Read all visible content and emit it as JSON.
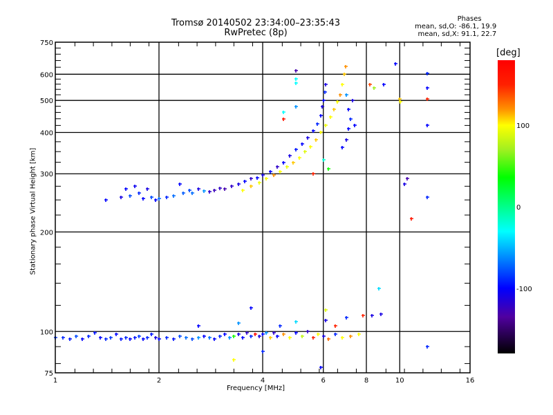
{
  "chart_data": {
    "type": "scatter",
    "title": "Tromsø 20140502 23:34:00–23:35:43",
    "subtitle": "RwPretec (8p)",
    "xlabel": "Frequency [MHz]",
    "ylabel": "Stationary phase Virtual Height [km]",
    "xscale": "log2",
    "yscale": "log",
    "xlim": [
      1,
      16
    ],
    "ylim": [
      75,
      750
    ],
    "xticks": [
      "1",
      "2",
      "4",
      "6",
      "8",
      "10",
      "16"
    ],
    "xtick_values": [
      1,
      2,
      4,
      6,
      8,
      10,
      16
    ],
    "yticks": [
      "75",
      "100",
      "200",
      "300",
      "400",
      "500",
      "600",
      "750"
    ],
    "ytick_values": [
      75,
      100,
      200,
      300,
      400,
      500,
      600,
      750
    ],
    "xgrid": [
      2,
      4,
      6,
      8,
      10
    ],
    "ygrid": [
      100,
      200,
      300,
      400,
      500,
      600
    ],
    "stats": {
      "header": "Phases",
      "line_o": "mean, sd,O: -86.1, 19.9",
      "line_x": "mean, sd,X:  91.1, 22.7"
    },
    "colorbar": {
      "label": "[deg]",
      "range": [
        -180,
        180
      ],
      "ticks": [
        "100",
        "0",
        "-100"
      ],
      "tick_values": [
        100,
        0,
        -100
      ],
      "stops": [
        {
          "v": 180,
          "c": "#ff0000"
        },
        {
          "v": 150,
          "c": "#ff2000"
        },
        {
          "v": 120,
          "c": "#ff9000"
        },
        {
          "v": 100,
          "c": "#ffff00"
        },
        {
          "v": 70,
          "c": "#a0f020"
        },
        {
          "v": 36,
          "c": "#00ff00"
        },
        {
          "v": -30,
          "c": "#00ffff"
        },
        {
          "v": -100,
          "c": "#0000ff"
        },
        {
          "v": -135,
          "c": "#5000a0"
        },
        {
          "v": -180,
          "c": "#000000"
        }
      ]
    },
    "points_legend": "each point: [frequency MHz, virtual height km, phase deg]",
    "points": [
      [
        1.0,
        96,
        -85
      ],
      [
        1.05,
        96,
        -90
      ],
      [
        1.1,
        95,
        -95
      ],
      [
        1.15,
        97,
        -80
      ],
      [
        1.2,
        95,
        -100
      ],
      [
        1.25,
        97,
        -90
      ],
      [
        1.3,
        99,
        -95
      ],
      [
        1.35,
        96,
        -100
      ],
      [
        1.4,
        95,
        -90
      ],
      [
        1.45,
        96,
        -85
      ],
      [
        1.5,
        98,
        -100
      ],
      [
        1.55,
        95,
        -95
      ],
      [
        1.6,
        96,
        -90
      ],
      [
        1.65,
        95,
        -100
      ],
      [
        1.7,
        96,
        -95
      ],
      [
        1.75,
        97,
        -85
      ],
      [
        1.8,
        95,
        -100
      ],
      [
        1.85,
        96,
        -90
      ],
      [
        1.9,
        98,
        -95
      ],
      [
        1.95,
        96,
        -110
      ],
      [
        2.0,
        95,
        -100
      ],
      [
        2.1,
        96,
        -90
      ],
      [
        2.2,
        95,
        -95
      ],
      [
        2.3,
        97,
        -80
      ],
      [
        2.4,
        96,
        -70
      ],
      [
        2.5,
        95,
        -80
      ],
      [
        2.6,
        96,
        -60
      ],
      [
        2.7,
        97,
        -100
      ],
      [
        2.8,
        96,
        -70
      ],
      [
        2.9,
        95,
        -100
      ],
      [
        3.0,
        97,
        -90
      ],
      [
        3.1,
        98,
        -100
      ],
      [
        3.2,
        96,
        -60
      ],
      [
        3.3,
        97,
        40
      ],
      [
        3.4,
        98,
        -110
      ],
      [
        3.5,
        96,
        -100
      ],
      [
        3.6,
        99,
        -120
      ],
      [
        3.7,
        97,
        -90
      ],
      [
        3.8,
        98,
        170
      ],
      [
        3.9,
        97,
        -110
      ],
      [
        4.0,
        98,
        -100
      ],
      [
        4.1,
        99,
        -60
      ],
      [
        4.2,
        96,
        110
      ],
      [
        4.3,
        99,
        -120
      ],
      [
        4.4,
        97,
        -100
      ],
      [
        4.6,
        98,
        120
      ],
      [
        4.8,
        96,
        100
      ],
      [
        5.0,
        99,
        -100
      ],
      [
        5.2,
        97,
        80
      ],
      [
        5.4,
        100,
        -120
      ],
      [
        5.6,
        96,
        150
      ],
      [
        5.8,
        98,
        100
      ],
      [
        6.0,
        97,
        -110
      ],
      [
        6.2,
        95,
        130
      ],
      [
        6.5,
        98,
        -90
      ],
      [
        6.8,
        96,
        100
      ],
      [
        7.2,
        97,
        120
      ],
      [
        7.6,
        98,
        100
      ],
      [
        2.6,
        104,
        -100
      ],
      [
        3.4,
        106,
        -60
      ],
      [
        4.5,
        104,
        -90
      ],
      [
        5.0,
        107,
        -40
      ],
      [
        6.1,
        108,
        -110
      ],
      [
        6.5,
        104,
        150
      ],
      [
        7.0,
        110,
        -90
      ],
      [
        7.8,
        112,
        150
      ],
      [
        8.3,
        112,
        -110
      ],
      [
        8.8,
        113,
        -110
      ],
      [
        3.7,
        118,
        -100
      ],
      [
        6.1,
        116,
        90
      ],
      [
        1.4,
        250,
        -100
      ],
      [
        1.55,
        255,
        -110
      ],
      [
        1.6,
        270,
        -100
      ],
      [
        1.65,
        258,
        -80
      ],
      [
        1.7,
        275,
        -105
      ],
      [
        1.75,
        262,
        -90
      ],
      [
        1.8,
        252,
        -100
      ],
      [
        1.85,
        270,
        -110
      ],
      [
        1.9,
        255,
        -80
      ],
      [
        1.95,
        250,
        -100
      ],
      [
        2.0,
        252,
        -70
      ],
      [
        2.1,
        255,
        -90
      ],
      [
        2.2,
        258,
        -70
      ],
      [
        2.3,
        280,
        -100
      ],
      [
        2.35,
        262,
        -75
      ],
      [
        2.45,
        268,
        -80
      ],
      [
        2.5,
        262,
        -70
      ],
      [
        2.6,
        270,
        -110
      ],
      [
        2.7,
        266,
        -60
      ],
      [
        2.8,
        265,
        -120
      ],
      [
        2.9,
        268,
        -125
      ],
      [
        3.0,
        272,
        -120
      ],
      [
        3.1,
        270,
        -130
      ],
      [
        3.25,
        275,
        -120
      ],
      [
        3.4,
        280,
        -110
      ],
      [
        3.55,
        285,
        -100
      ],
      [
        3.7,
        290,
        -120
      ],
      [
        3.85,
        292,
        -100
      ],
      [
        4.0,
        298,
        -110
      ],
      [
        4.2,
        305,
        -100
      ],
      [
        4.4,
        315,
        -120
      ],
      [
        4.6,
        325,
        -100
      ],
      [
        4.8,
        340,
        -110
      ],
      [
        5.0,
        355,
        -95
      ],
      [
        5.2,
        370,
        -100
      ],
      [
        5.4,
        385,
        -110
      ],
      [
        5.6,
        405,
        -100
      ],
      [
        5.75,
        425,
        -90
      ],
      [
        5.9,
        450,
        -100
      ],
      [
        5.95,
        480,
        -110
      ],
      [
        6.0,
        500,
        -100
      ],
      [
        6.05,
        530,
        -90
      ],
      [
        6.1,
        560,
        -110
      ],
      [
        3.5,
        268,
        100
      ],
      [
        3.7,
        275,
        110
      ],
      [
        3.9,
        282,
        95
      ],
      [
        4.1,
        290,
        100
      ],
      [
        4.3,
        298,
        120
      ],
      [
        4.5,
        305,
        100
      ],
      [
        4.7,
        315,
        95
      ],
      [
        4.9,
        325,
        110
      ],
      [
        5.1,
        335,
        100
      ],
      [
        5.3,
        350,
        90
      ],
      [
        5.5,
        362,
        100
      ],
      [
        5.7,
        380,
        110
      ],
      [
        5.9,
        400,
        100
      ],
      [
        6.1,
        420,
        95
      ],
      [
        6.3,
        445,
        100
      ],
      [
        6.45,
        470,
        110
      ],
      [
        6.6,
        495,
        100
      ],
      [
        6.7,
        520,
        120
      ],
      [
        6.8,
        560,
        100
      ],
      [
        6.9,
        600,
        110
      ],
      [
        6.95,
        635,
        120
      ],
      [
        6.2,
        310,
        40
      ],
      [
        6.0,
        330,
        -20
      ],
      [
        5.6,
        300,
        150
      ],
      [
        6.8,
        360,
        -100
      ],
      [
        7.0,
        380,
        -110
      ],
      [
        7.1,
        410,
        -100
      ],
      [
        7.2,
        440,
        -90
      ],
      [
        7.1,
        470,
        -100
      ],
      [
        7.3,
        500,
        -110
      ],
      [
        7.0,
        520,
        -60
      ],
      [
        7.4,
        420,
        -100
      ],
      [
        5.0,
        615,
        -130
      ],
      [
        5.0,
        580,
        -30
      ],
      [
        5.0,
        565,
        -30
      ],
      [
        5.0,
        480,
        -60
      ],
      [
        4.6,
        460,
        -30
      ],
      [
        4.6,
        440,
        160
      ],
      [
        9.7,
        645,
        -100
      ],
      [
        10.0,
        505,
        110
      ],
      [
        10.05,
        495,
        100
      ],
      [
        9.0,
        560,
        -100
      ],
      [
        8.2,
        560,
        140
      ],
      [
        8.4,
        545,
        70
      ],
      [
        12.0,
        605,
        -90
      ],
      [
        12.0,
        545,
        -100
      ],
      [
        12.0,
        505,
        150
      ],
      [
        12.0,
        420,
        -100
      ],
      [
        12.0,
        255,
        -90
      ],
      [
        10.5,
        290,
        -130
      ],
      [
        10.3,
        280,
        -110
      ],
      [
        10.8,
        220,
        160
      ],
      [
        12.0,
        90,
        -90
      ],
      [
        8.7,
        135,
        -40
      ],
      [
        5.9,
        78,
        -100
      ],
      [
        3.3,
        82,
        100
      ],
      [
        4.0,
        87,
        -90
      ]
    ]
  }
}
